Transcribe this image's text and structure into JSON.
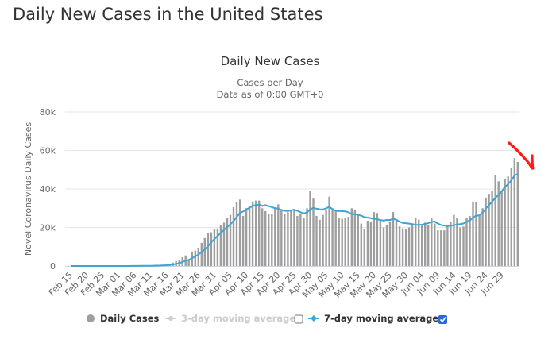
{
  "page": {
    "title": "Daily New Cases in the United States"
  },
  "chart_data": {
    "type": "bar",
    "title": "Daily New Cases",
    "subtitle_lines": [
      "Cases per Day",
      "Data as of 0:00 GMT+0"
    ],
    "xlabel": "",
    "ylabel": "Novel Coronavirus Daily Cases",
    "ylim": [
      0,
      80000
    ],
    "yticks": [
      0,
      20000,
      40000,
      60000,
      80000
    ],
    "ytick_labels": [
      "0",
      "20k",
      "40k",
      "60k",
      "80k"
    ],
    "grid": true,
    "start_date": "Feb 15",
    "xtick_labels": [
      "Feb 15",
      "Feb 20",
      "Feb 25",
      "Mar 01",
      "Mar 06",
      "Mar 11",
      "Mar 16",
      "Mar 21",
      "Mar 26",
      "Mar 31",
      "Apr 05",
      "Apr 10",
      "Apr 15",
      "Apr 20",
      "Apr 25",
      "Apr 30",
      "May 05",
      "May 10",
      "May 15",
      "May 20",
      "May 25",
      "May 30",
      "Jun 04",
      "Jun 09",
      "Jun 14",
      "Jun 19",
      "Jun 24",
      "Jun 29"
    ],
    "xtick_every_days": 5,
    "series": [
      {
        "name": "Daily Cases",
        "type": "bar",
        "color": "#9e9e9e",
        "values": [
          0,
          0,
          0,
          0,
          0,
          0,
          0,
          0,
          0,
          0,
          0,
          0,
          0,
          0,
          0,
          10,
          20,
          30,
          40,
          60,
          80,
          100,
          120,
          150,
          180,
          250,
          300,
          350,
          500,
          650,
          800,
          1200,
          1800,
          2500,
          3000,
          4500,
          5500,
          3500,
          7500,
          8000,
          9500,
          12000,
          14500,
          17000,
          17500,
          19000,
          19500,
          21000,
          22500,
          25000,
          26500,
          30500,
          33000,
          34500,
          26000,
          30000,
          31000,
          33500,
          34000,
          34000,
          30000,
          28500,
          27000,
          27000,
          30000,
          32000,
          29000,
          27000,
          28000,
          29000,
          29500,
          26000,
          27000,
          25000,
          30000,
          39000,
          35000,
          26000,
          24000,
          26500,
          29000,
          36000,
          30000,
          29000,
          25000,
          24500,
          25000,
          25500,
          30000,
          29000,
          27000,
          22000,
          19000,
          23500,
          23000,
          28000,
          27500,
          24000,
          20000,
          21500,
          23000,
          28000,
          24000,
          20500,
          19500,
          19000,
          20000,
          21500,
          25000,
          24000,
          21000,
          22500,
          21500,
          25000,
          22000,
          18500,
          18500,
          18500,
          21000,
          23000,
          26500,
          25000,
          20000,
          20500,
          25000,
          26000,
          33500,
          33000,
          26000,
          30000,
          35500,
          37500,
          39000,
          47000,
          44000,
          39000,
          45000,
          46500,
          51000,
          56000,
          54000
        ],
        "note": "values estimated from bar heights"
      },
      {
        "name": "7-day moving average",
        "type": "line",
        "color": "#41a3d1",
        "enabled": true
      },
      {
        "name": "3-day moving average",
        "type": "line",
        "color": "#cccccc",
        "enabled": false
      }
    ],
    "legend_position": "bottom-center"
  },
  "legend": {
    "items": [
      {
        "label": "Daily Cases",
        "icon": "circle-marker-icon",
        "active": true
      },
      {
        "label": "3-day moving average",
        "icon": "line-marker-icon",
        "active": false,
        "checkbox_checked": false
      },
      {
        "label": "7-day moving average",
        "icon": "line-marker-icon",
        "active": true,
        "checkbox_checked": true
      }
    ]
  },
  "annotation": {
    "type": "hand-drawn red arrow",
    "color": "#ff0000"
  }
}
